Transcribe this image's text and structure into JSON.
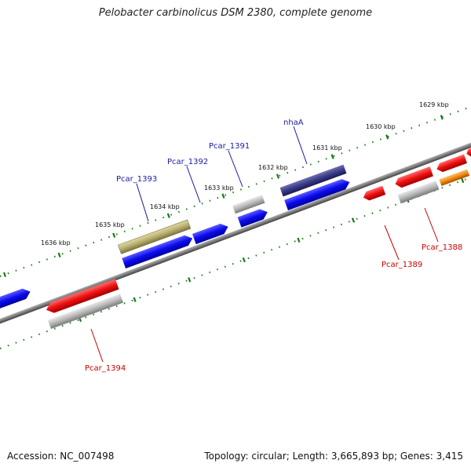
{
  "title": "Pelobacter carbinolicus DSM 2380, complete genome",
  "footer": {
    "accession": "Accession: NC_007498",
    "summary": "Topology: circular; Length: 3,665,893 bp; Genes: 3,415"
  },
  "colors": {
    "background": "#ffffff",
    "backbone": "#7a7a7a",
    "tick_green": "#1a7a1a",
    "label_blue": "#1a1aa0",
    "label_red": "#cc0000",
    "gene_blue": "#0a0af0",
    "gene_red": "#ee1010",
    "gene_gray": "#b8b8b8",
    "gene_olive": "#b8b070",
    "gene_navy": "#3a3a8a",
    "gene_orange": "#f08a10"
  },
  "kbp_ticks": [
    "1636 kbp",
    "1635 kbp",
    "1634 kbp",
    "1633 kbp",
    "1632 kbp",
    "1631 kbp",
    "1630 kbp",
    "1629 kbp"
  ],
  "gene_labels": {
    "top": [
      "Pcar_1393",
      "Pcar_1392",
      "Pcar_1391",
      "nhaA"
    ],
    "bottom": [
      "Pcar_1394",
      "Pcar_1389",
      "Pcar_1388"
    ]
  }
}
